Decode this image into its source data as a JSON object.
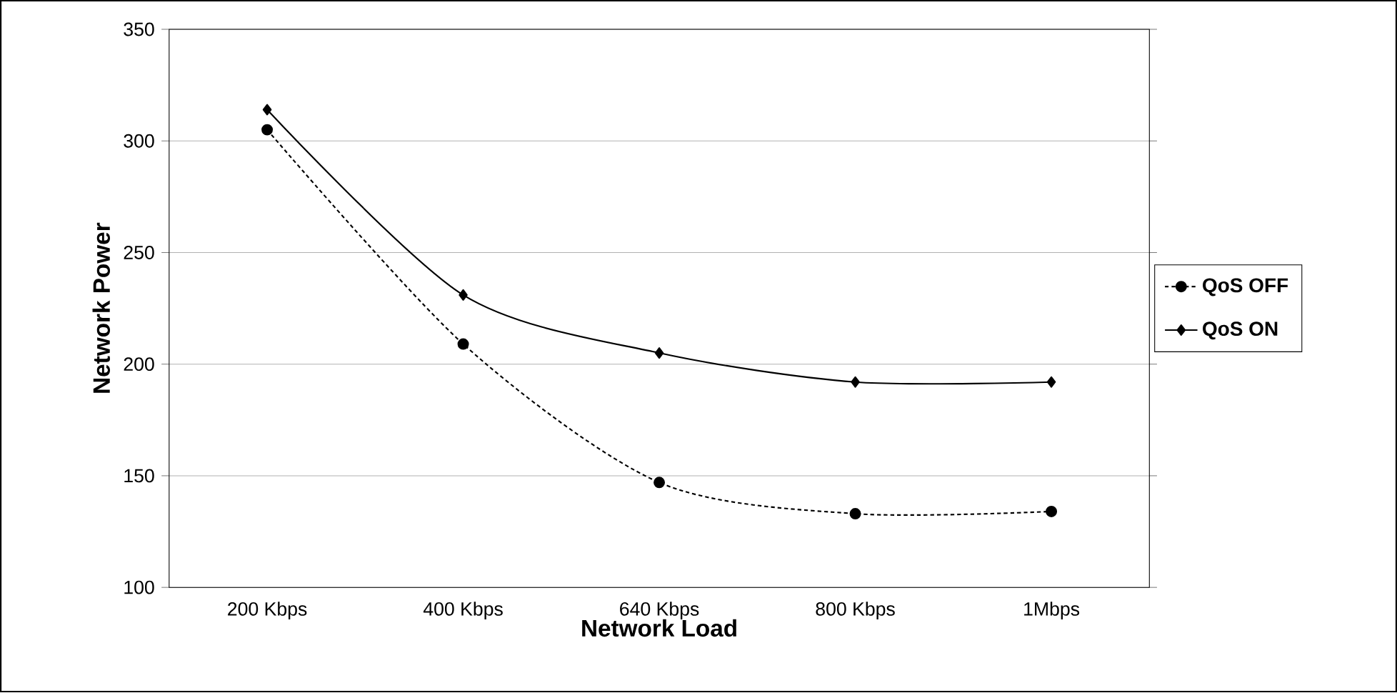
{
  "chart_data": {
    "type": "line",
    "xlabel": "Network Load",
    "ylabel": "Network Power",
    "categories": [
      "200 Kbps",
      "400 Kbps",
      "640 Kbps",
      "800 Kbps",
      "1Mbps"
    ],
    "series": [
      {
        "name": "QoS OFF",
        "color": "#000000",
        "values": [
          305,
          209,
          147,
          133,
          134
        ],
        "marker": "circle",
        "line_style": "dotted"
      },
      {
        "name": "QoS ON",
        "color": "#000000",
        "values": [
          314,
          231,
          205,
          192,
          192
        ],
        "marker": "diamond",
        "line_style": "solid"
      }
    ],
    "ylim": [
      100,
      350
    ],
    "yticks": [
      100,
      150,
      200,
      250,
      300,
      350
    ],
    "grid": "y",
    "legend": "right"
  }
}
